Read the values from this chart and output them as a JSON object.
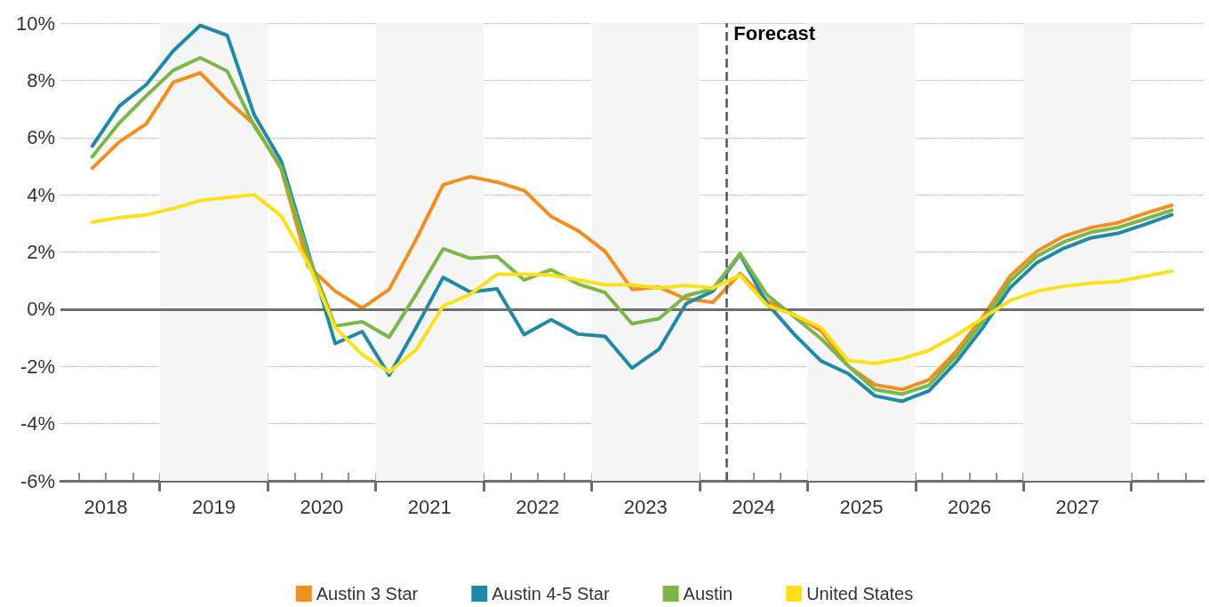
{
  "chart_data": {
    "type": "line",
    "x": [
      2018.375,
      2018.625,
      2018.875,
      2019.125,
      2019.375,
      2019.625,
      2019.875,
      2020.125,
      2020.375,
      2020.625,
      2020.875,
      2021.125,
      2021.375,
      2021.625,
      2021.875,
      2022.125,
      2022.375,
      2022.625,
      2022.875,
      2023.125,
      2023.375,
      2023.625,
      2023.875,
      2024.125,
      2024.375,
      2024.625,
      2024.875,
      2025.125,
      2025.375,
      2025.625,
      2025.875,
      2026.125,
      2026.375,
      2026.625,
      2026.875,
      2027.125,
      2027.375,
      2027.625,
      2027.875,
      2028.125,
      2028.375
    ],
    "series": [
      {
        "name": "Austin 3 Star",
        "color": "#f28e1e",
        "values": [
          4.93,
          5.85,
          6.48,
          7.93,
          8.26,
          7.3,
          6.46,
          4.9,
          1.5,
          0.63,
          0.04,
          0.69,
          2.44,
          4.35,
          4.63,
          4.44,
          4.15,
          3.24,
          2.74,
          2.02,
          0.69,
          0.77,
          0.36,
          0.24,
          1.24,
          0.3,
          -0.2,
          -0.75,
          -1.98,
          -2.64,
          -2.81,
          -2.47,
          -1.48,
          -0.26,
          1.15,
          2.02,
          2.55,
          2.85,
          3.02,
          3.35,
          3.63
        ]
      },
      {
        "name": "Austin 4-5 Star",
        "color": "#1f8aa8",
        "values": [
          5.7,
          7.1,
          7.85,
          9.03,
          9.92,
          9.57,
          6.79,
          5.18,
          2.0,
          -1.2,
          -0.78,
          -2.31,
          -0.64,
          1.11,
          0.6,
          0.71,
          -0.89,
          -0.37,
          -0.87,
          -0.95,
          -2.06,
          -1.4,
          0.19,
          0.63,
          1.91,
          0.2,
          -0.87,
          -1.81,
          -2.25,
          -3.03,
          -3.22,
          -2.86,
          -1.86,
          -0.64,
          0.74,
          1.63,
          2.13,
          2.49,
          2.65,
          2.96,
          3.3
        ]
      },
      {
        "name": "Austin",
        "color": "#7ab648",
        "values": [
          5.33,
          6.51,
          7.46,
          8.35,
          8.79,
          8.32,
          6.4,
          4.96,
          1.9,
          -0.59,
          -0.44,
          -0.98,
          0.52,
          2.11,
          1.78,
          1.84,
          1.02,
          1.38,
          0.88,
          0.58,
          -0.51,
          -0.33,
          0.47,
          0.71,
          1.94,
          0.5,
          -0.26,
          -1.03,
          -1.98,
          -2.81,
          -2.97,
          -2.66,
          -1.64,
          -0.42,
          0.97,
          1.85,
          2.35,
          2.69,
          2.85,
          3.15,
          3.46
        ]
      },
      {
        "name": "United States",
        "color": "#fde01a",
        "values": [
          3.04,
          3.2,
          3.3,
          3.52,
          3.8,
          3.9,
          4.0,
          3.26,
          1.6,
          -0.64,
          -1.59,
          -2.2,
          -1.42,
          0.11,
          0.52,
          1.22,
          1.22,
          1.19,
          1.02,
          0.85,
          0.85,
          0.74,
          0.83,
          0.74,
          1.19,
          0.13,
          -0.2,
          -0.64,
          -1.79,
          -1.9,
          -1.73,
          -1.44,
          -0.92,
          -0.31,
          0.3,
          0.63,
          0.8,
          0.91,
          0.97,
          1.15,
          1.33
        ]
      }
    ],
    "xlim": [
      2018.08,
      2028.67
    ],
    "xticks": [
      {
        "value": 2018.25,
        "label": null
      },
      {
        "value": 2018.5,
        "label": "2018"
      },
      {
        "value": 2018.75,
        "label": null
      },
      {
        "value": 2019,
        "label": null
      },
      {
        "value": 2019.25,
        "label": null
      },
      {
        "value": 2019.5,
        "label": "2019"
      },
      {
        "value": 2019.75,
        "label": null
      },
      {
        "value": 2020,
        "label": null
      },
      {
        "value": 2020.25,
        "label": null
      },
      {
        "value": 2020.5,
        "label": "2020"
      },
      {
        "value": 2020.75,
        "label": null
      },
      {
        "value": 2021,
        "label": null
      },
      {
        "value": 2021.25,
        "label": null
      },
      {
        "value": 2021.5,
        "label": "2021"
      },
      {
        "value": 2021.75,
        "label": null
      },
      {
        "value": 2022,
        "label": null
      },
      {
        "value": 2022.25,
        "label": null
      },
      {
        "value": 2022.5,
        "label": "2022"
      },
      {
        "value": 2022.75,
        "label": null
      },
      {
        "value": 2023,
        "label": null
      },
      {
        "value": 2023.25,
        "label": null
      },
      {
        "value": 2023.5,
        "label": "2023"
      },
      {
        "value": 2023.75,
        "label": null
      },
      {
        "value": 2024,
        "label": null
      },
      {
        "value": 2024.25,
        "label": null
      },
      {
        "value": 2024.5,
        "label": "2024"
      },
      {
        "value": 2024.75,
        "label": null
      },
      {
        "value": 2025,
        "label": null
      },
      {
        "value": 2025.25,
        "label": null
      },
      {
        "value": 2025.5,
        "label": "2025"
      },
      {
        "value": 2025.75,
        "label": null
      },
      {
        "value": 2026,
        "label": null
      },
      {
        "value": 2026.25,
        "label": null
      },
      {
        "value": 2026.5,
        "label": "2026"
      },
      {
        "value": 2026.75,
        "label": null
      },
      {
        "value": 2027,
        "label": null
      },
      {
        "value": 2027.25,
        "label": null
      },
      {
        "value": 2027.5,
        "label": "2027"
      },
      {
        "value": 2027.75,
        "label": null
      },
      {
        "value": 2028,
        "label": null
      },
      {
        "value": 2028.25,
        "label": null
      },
      {
        "value": 2028.5,
        "label": null
      }
    ],
    "ylim": [
      -6,
      10
    ],
    "yticks": [
      {
        "value": -6,
        "label": "-6%"
      },
      {
        "value": -4,
        "label": "-4%"
      },
      {
        "value": -2,
        "label": "-2%"
      },
      {
        "value": 0,
        "label": "0%"
      },
      {
        "value": 2,
        "label": "2%"
      },
      {
        "value": 4,
        "label": "4%"
      },
      {
        "value": 6,
        "label": "6%"
      },
      {
        "value": 8,
        "label": "8%"
      },
      {
        "value": 10,
        "label": "10%"
      }
    ],
    "ref_lines": [
      {
        "axis": "y",
        "value": 0,
        "label": null,
        "color": "#6e6e6e",
        "line_style": "solid"
      },
      {
        "axis": "x",
        "value": 2024.25,
        "label": "Forecast",
        "color": "#555555",
        "line_style": "dashed"
      }
    ],
    "bands": [
      {
        "axis": "x",
        "from": 2019,
        "to": 2020,
        "label": null,
        "color": "#f5f5f5"
      },
      {
        "axis": "x",
        "from": 2021,
        "to": 2022,
        "label": null,
        "color": "#f5f5f5"
      },
      {
        "axis": "x",
        "from": 2023,
        "to": 2024,
        "label": null,
        "color": "#f5f5f5"
      },
      {
        "axis": "x",
        "from": 2025,
        "to": 2026,
        "label": null,
        "color": "#f5f5f5"
      },
      {
        "axis": "x",
        "from": 2027,
        "to": 2028,
        "label": null,
        "color": "#f5f5f5"
      }
    ],
    "grid": "y",
    "legend": "bottom",
    "marker": "none",
    "line_style": "solid"
  }
}
